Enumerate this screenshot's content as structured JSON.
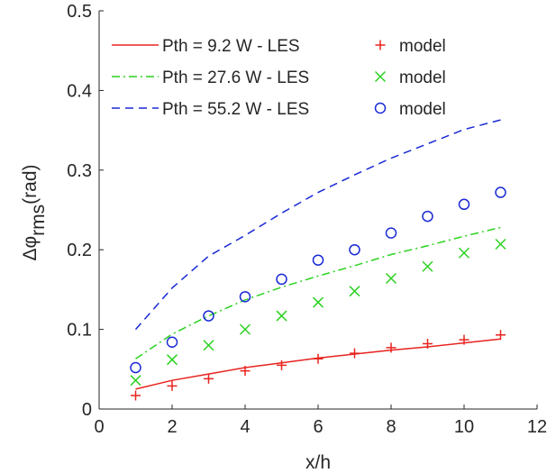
{
  "chart_data": {
    "type": "line",
    "xlabel": "x/h",
    "ylabel_main": "Δφ",
    "ylabel_sub": "rms",
    "ylabel_unit": "(rad)",
    "xlim": [
      0,
      12
    ],
    "ylim": [
      0,
      0.5
    ],
    "xticks": [
      "0",
      "2",
      "4",
      "6",
      "8",
      "10",
      "12"
    ],
    "yticks": [
      "0",
      "0.1",
      "0.2",
      "0.3",
      "0.4",
      "0.5"
    ],
    "grid": false,
    "legend_position": "top-left",
    "series": [
      {
        "name": "Pth = 9.2 W   - LES",
        "style": "solid",
        "color": "#e8231f",
        "x": [
          1,
          2,
          3,
          4,
          5,
          6,
          7,
          8,
          9,
          10,
          11
        ],
        "values": [
          0.025,
          0.036,
          0.044,
          0.052,
          0.058,
          0.064,
          0.069,
          0.074,
          0.078,
          0.083,
          0.088
        ]
      },
      {
        "name": "model",
        "style": "marker-plus",
        "color": "#e8231f",
        "x": [
          1,
          2,
          3,
          4,
          5,
          6,
          7,
          8,
          9,
          10,
          11
        ],
        "values": [
          0.017,
          0.029,
          0.038,
          0.048,
          0.055,
          0.063,
          0.07,
          0.077,
          0.082,
          0.087,
          0.093
        ]
      },
      {
        "name": "Pth = 27.6 W - LES",
        "style": "dashdot",
        "color": "#2ad21f",
        "x": [
          1,
          2,
          3,
          4,
          5,
          6,
          7,
          8,
          9,
          10,
          11
        ],
        "values": [
          0.063,
          0.094,
          0.117,
          0.137,
          0.153,
          0.167,
          0.18,
          0.194,
          0.205,
          0.217,
          0.228
        ]
      },
      {
        "name": "model",
        "style": "marker-x",
        "color": "#2ad21f",
        "x": [
          1,
          2,
          3,
          4,
          5,
          6,
          7,
          8,
          9,
          10,
          11
        ],
        "values": [
          0.036,
          0.062,
          0.08,
          0.1,
          0.117,
          0.134,
          0.148,
          0.164,
          0.179,
          0.196,
          0.207
        ]
      },
      {
        "name": "Pth = 55.2 W - LES",
        "style": "dashed",
        "color": "#1a2ad6",
        "x": [
          1,
          2,
          3,
          4,
          5,
          6,
          7,
          8,
          9,
          10,
          11
        ],
        "values": [
          0.1,
          0.152,
          0.192,
          0.218,
          0.246,
          0.272,
          0.294,
          0.315,
          0.333,
          0.351,
          0.363
        ]
      },
      {
        "name": "model",
        "style": "marker-circle",
        "color": "#1a2ad6",
        "x": [
          1,
          2,
          3,
          4,
          5,
          6,
          7,
          8,
          9,
          10,
          11
        ],
        "values": [
          0.052,
          0.084,
          0.117,
          0.141,
          0.163,
          0.187,
          0.2,
          0.221,
          0.242,
          0.257,
          0.272
        ]
      }
    ]
  }
}
